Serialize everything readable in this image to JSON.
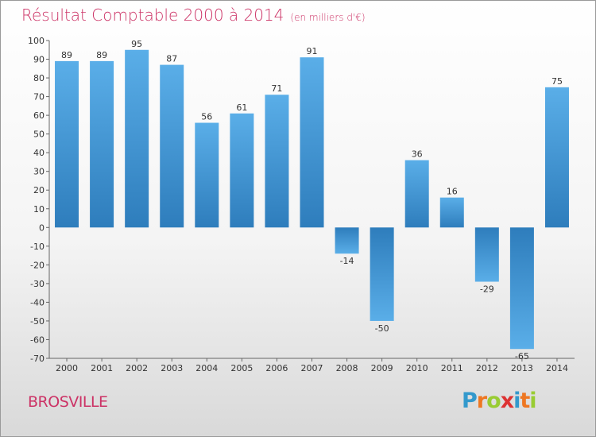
{
  "title": {
    "main": "Résultat Comptable 2000 à 2014",
    "sub": "(en milliers d'€)"
  },
  "commune": "BROSVILLE",
  "brand": {
    "letters": [
      "P",
      "r",
      "o",
      "x",
      "i",
      "t",
      "i"
    ],
    "colors": [
      "#3399cc",
      "#ee7722",
      "#99cc33",
      "#dd3333",
      "#3399cc",
      "#ee7722",
      "#99cc33"
    ]
  },
  "colors": {
    "accent": "#cc3366",
    "bar_dark": "#2e7dbc",
    "bar_light": "#5aaee8"
  },
  "chart_data": {
    "type": "bar",
    "title": "Résultat Comptable 2000 à 2014",
    "xlabel": "",
    "ylabel": "",
    "categories": [
      "2000",
      "2001",
      "2002",
      "2003",
      "2004",
      "2005",
      "2006",
      "2007",
      "2008",
      "2009",
      "2010",
      "2011",
      "2012",
      "2013",
      "2014"
    ],
    "values": [
      89,
      89,
      95,
      87,
      56,
      61,
      71,
      91,
      -14,
      -50,
      36,
      16,
      -29,
      -65,
      75
    ],
    "ylim": [
      -70,
      100
    ],
    "yticks": [
      100,
      90,
      80,
      70,
      60,
      50,
      40,
      30,
      20,
      10,
      0,
      -10,
      -20,
      -30,
      -40,
      -50,
      -60,
      -70
    ],
    "grid": false
  }
}
